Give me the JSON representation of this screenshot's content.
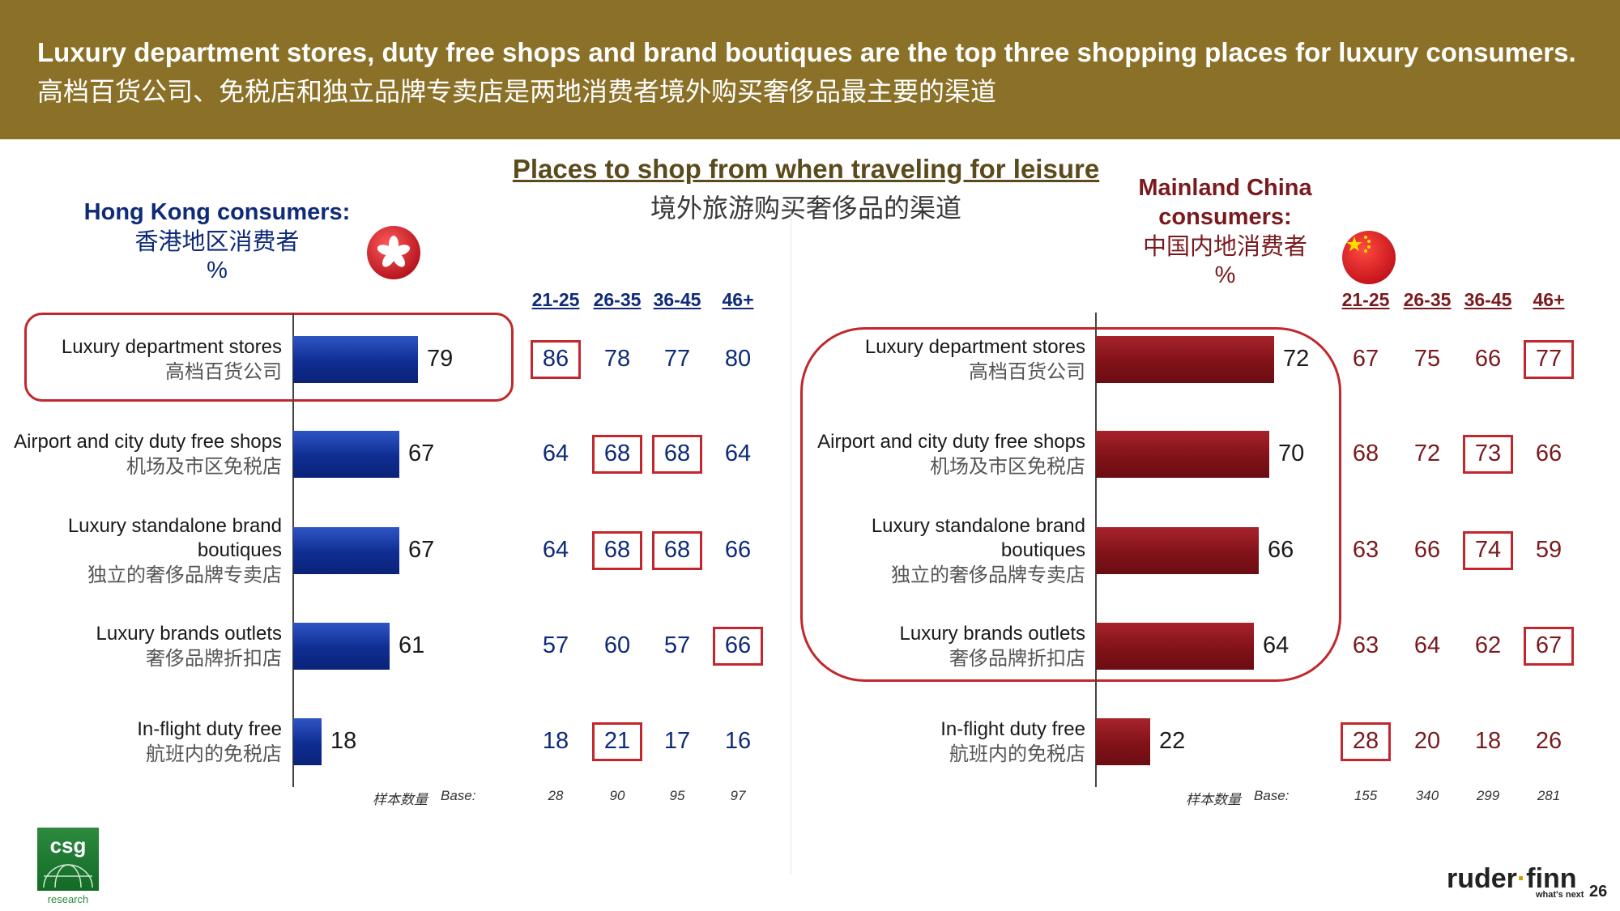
{
  "header": {
    "title_en": "Luxury department stores, duty free shops and brand boutiques are the top three shopping places for luxury consumers.",
    "title_zh": "高档百货公司、免税店和独立品牌专卖店是两地消费者境外购买奢侈品最主要的渠道"
  },
  "main_title": {
    "en": "Places to shop from when traveling for leisure",
    "zh": "境外旅游购买奢侈品的渠道"
  },
  "colors": {
    "hk_bar": "#0f2d92",
    "cn_bar": "#821219",
    "highlight": "#c1272d",
    "header_bg": "#8b7128"
  },
  "chart_data": [
    {
      "type": "bar",
      "orientation": "horizontal",
      "panel": "hk",
      "title_lines": [
        "Hong Kong consumers:",
        "香港地区消费者",
        "%"
      ],
      "categories": [
        [
          "Luxury department stores",
          "高档百货公司"
        ],
        [
          "Airport and city duty free shops",
          "机场及市区免税店"
        ],
        [
          "Luxury standalone brand",
          "boutiques",
          "独立的奢侈品牌专卖店"
        ],
        [
          "Luxury brands outlets",
          "奢侈品牌折扣店"
        ],
        [
          "In-flight duty free",
          "航班内的免税店"
        ]
      ],
      "values": [
        79,
        67,
        67,
        61,
        18
      ],
      "age_groups": [
        "21-25",
        "26-35",
        "36-45",
        "46+"
      ],
      "age_values": [
        [
          86,
          78,
          77,
          80
        ],
        [
          64,
          68,
          68,
          64
        ],
        [
          64,
          68,
          68,
          66
        ],
        [
          57,
          60,
          57,
          66
        ],
        [
          18,
          21,
          17,
          16
        ]
      ],
      "highlighted": [
        [
          0,
          0
        ],
        [
          1,
          1
        ],
        [
          1,
          2
        ],
        [
          2,
          1
        ],
        [
          2,
          2
        ],
        [
          3,
          3
        ],
        [
          4,
          1
        ]
      ],
      "circled_rows": [
        0
      ],
      "base_label_zh": "样本数量",
      "base_label_en": "Base:",
      "base_values": [
        28,
        90,
        95,
        97
      ]
    },
    {
      "type": "bar",
      "orientation": "horizontal",
      "panel": "cn",
      "title_lines": [
        "Mainland China",
        "consumers:",
        "中国内地消费者",
        "%"
      ],
      "categories": [
        [
          "Luxury department stores",
          "高档百货公司"
        ],
        [
          "Airport and city duty free shops",
          "机场及市区免税店"
        ],
        [
          "Luxury standalone brand",
          "boutiques",
          "独立的奢侈品牌专卖店"
        ],
        [
          "Luxury brands outlets",
          "奢侈品牌折扣店"
        ],
        [
          "In-flight duty free",
          "航班内的免税店"
        ]
      ],
      "values": [
        72,
        70,
        66,
        64,
        22
      ],
      "age_groups": [
        "21-25",
        "26-35",
        "36-45",
        "46+"
      ],
      "age_values": [
        [
          67,
          75,
          66,
          77
        ],
        [
          68,
          72,
          73,
          66
        ],
        [
          63,
          66,
          74,
          59
        ],
        [
          63,
          64,
          62,
          67
        ],
        [
          28,
          20,
          18,
          26
        ]
      ],
      "highlighted": [
        [
          0,
          3
        ],
        [
          1,
          2
        ],
        [
          2,
          2
        ],
        [
          3,
          3
        ],
        [
          4,
          0
        ]
      ],
      "circled_rows": [
        0,
        1,
        2,
        3
      ],
      "base_label_zh": "样本数量",
      "base_label_en": "Base:",
      "base_values": [
        155,
        340,
        299,
        281
      ]
    }
  ],
  "logo": {
    "text": "csg",
    "sub": "research"
  },
  "brand": {
    "left": "ruder",
    "dot": "·",
    "right": "finn",
    "tagline": "what's next"
  },
  "page_number": "26"
}
